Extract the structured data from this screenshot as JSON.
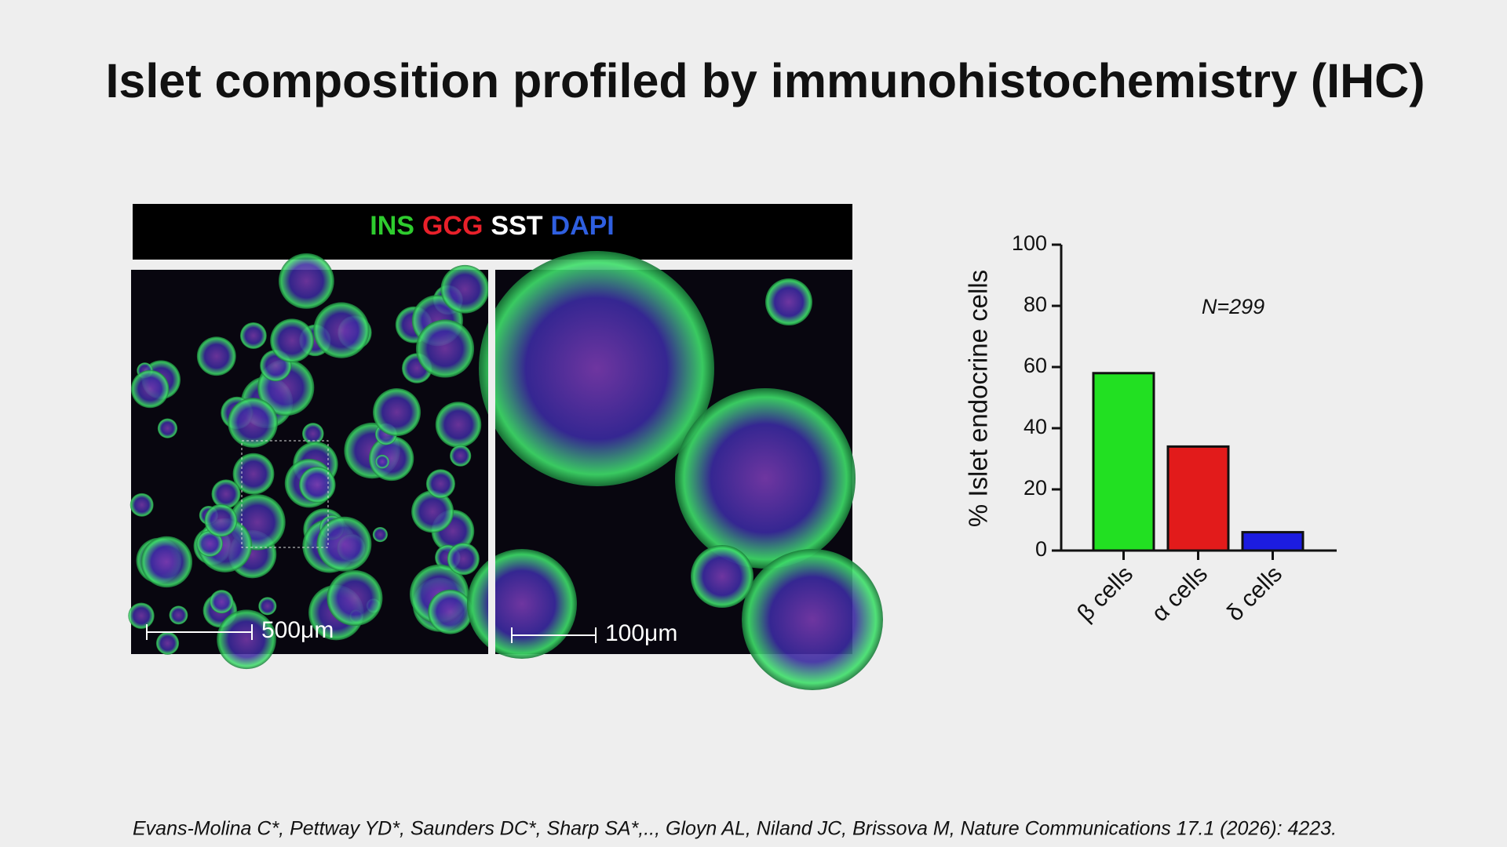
{
  "slide": {
    "title": "Islet composition profiled by immunohistochemistry (IHC)",
    "stain_legend": [
      {
        "text": "INS",
        "color": "#2ecc2e"
      },
      {
        "text": "GCG",
        "color": "#e8202a"
      },
      {
        "text": "SST",
        "color": "#ffffff"
      },
      {
        "text": "DAPI",
        "color": "#2f5fe0"
      }
    ],
    "scale_bars": [
      "500μm",
      "100μm"
    ],
    "citation": "Evans-Molina C*, Pettway YD*, Saunders DC*, Sharp SA*,.., Gloyn AL, Niland JC, Brissova M, Nature Communications 17.1 (2026): 4223."
  },
  "chart_data": {
    "type": "bar",
    "y_label": "% Islet endocrine cells",
    "annotation": "N=299",
    "categories": [
      "β cells",
      "α cells",
      "δ cells"
    ],
    "values": [
      58,
      34,
      6
    ],
    "colors": [
      "#22e022",
      "#e21b1b",
      "#1c1ce0"
    ],
    "ylim": [
      0,
      100
    ],
    "yticks": [
      0,
      20,
      40,
      60,
      80,
      100
    ]
  }
}
